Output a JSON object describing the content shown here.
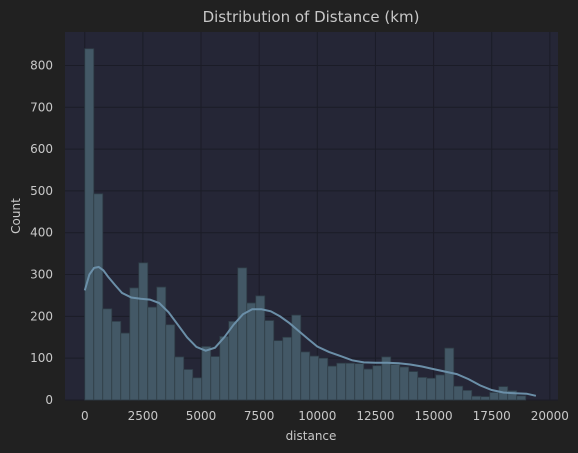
{
  "chart_data": {
    "type": "bar",
    "title": "Distribution of Distance (km)",
    "xlabel": "distance",
    "ylabel": "Count",
    "xlim": [
      -850,
      20350
    ],
    "ylim": [
      0,
      880
    ],
    "xticks": [
      0,
      2500,
      5000,
      7500,
      10000,
      12500,
      15000,
      17500,
      20000
    ],
    "yticks": [
      0,
      100,
      200,
      300,
      400,
      500,
      600,
      700,
      800
    ],
    "grid": true,
    "bin_start": 0,
    "bin_width": 387,
    "counts": [
      840,
      493,
      218,
      188,
      160,
      268,
      328,
      222,
      270,
      180,
      103,
      73,
      53,
      128,
      104,
      152,
      188,
      316,
      232,
      249,
      190,
      142,
      150,
      203,
      115,
      105,
      100,
      81,
      88,
      88,
      87,
      74,
      82,
      103,
      85,
      79,
      68,
      54,
      52,
      60,
      124,
      33,
      23,
      9,
      8,
      18,
      32,
      22,
      10
    ],
    "kde": {
      "x": [
        0,
        200,
        400,
        600,
        800,
        1000,
        1300,
        1600,
        2000,
        2400,
        2800,
        3200,
        3600,
        4000,
        4400,
        4800,
        5200,
        5600,
        6000,
        6400,
        6800,
        7200,
        7600,
        8000,
        8400,
        8800,
        9200,
        9600,
        10000,
        10500,
        11000,
        11500,
        12000,
        12500,
        13000,
        13500,
        14000,
        14500,
        15000,
        15500,
        16000,
        16500,
        17000,
        17500,
        18000,
        18500,
        19000,
        19400
      ],
      "y": [
        262,
        300,
        316,
        318,
        310,
        295,
        275,
        256,
        245,
        242,
        240,
        232,
        210,
        180,
        150,
        127,
        118,
        125,
        150,
        180,
        205,
        217,
        217,
        212,
        200,
        184,
        165,
        146,
        128,
        115,
        105,
        95,
        90,
        89,
        89,
        88,
        85,
        80,
        74,
        68,
        62,
        50,
        35,
        24,
        18,
        16,
        15,
        10
      ]
    }
  }
}
